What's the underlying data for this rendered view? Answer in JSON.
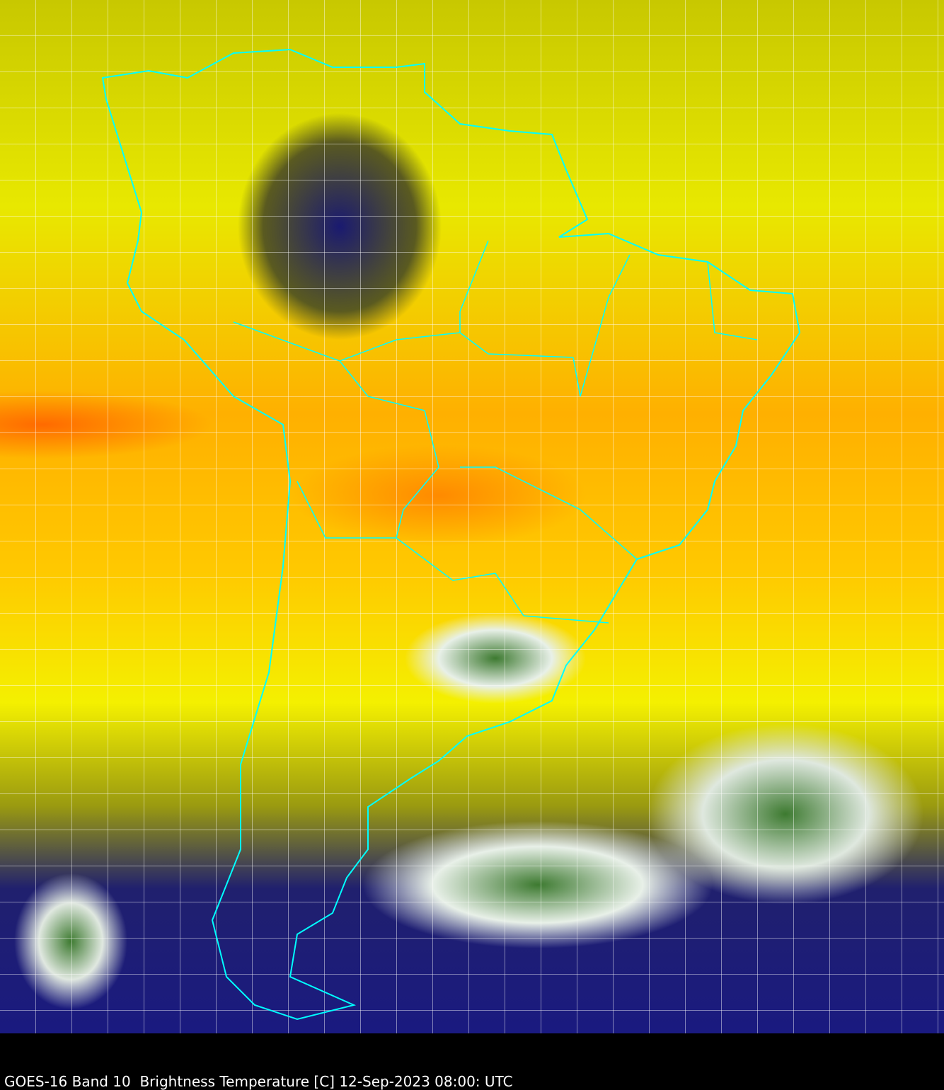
{
  "caption": "GOES-16 Band 10  Brightness Temperature [C] 12-Sep-2023 08:00: UTC",
  "colors": {
    "background": "#000000",
    "borders": "#00ffff",
    "warm": "#ff8a00",
    "dry": "#ffff00",
    "cold_cloud": "#3d7a30",
    "mid_cloud": "#1a1a80"
  },
  "map": {
    "region": "South America",
    "grid": true
  }
}
